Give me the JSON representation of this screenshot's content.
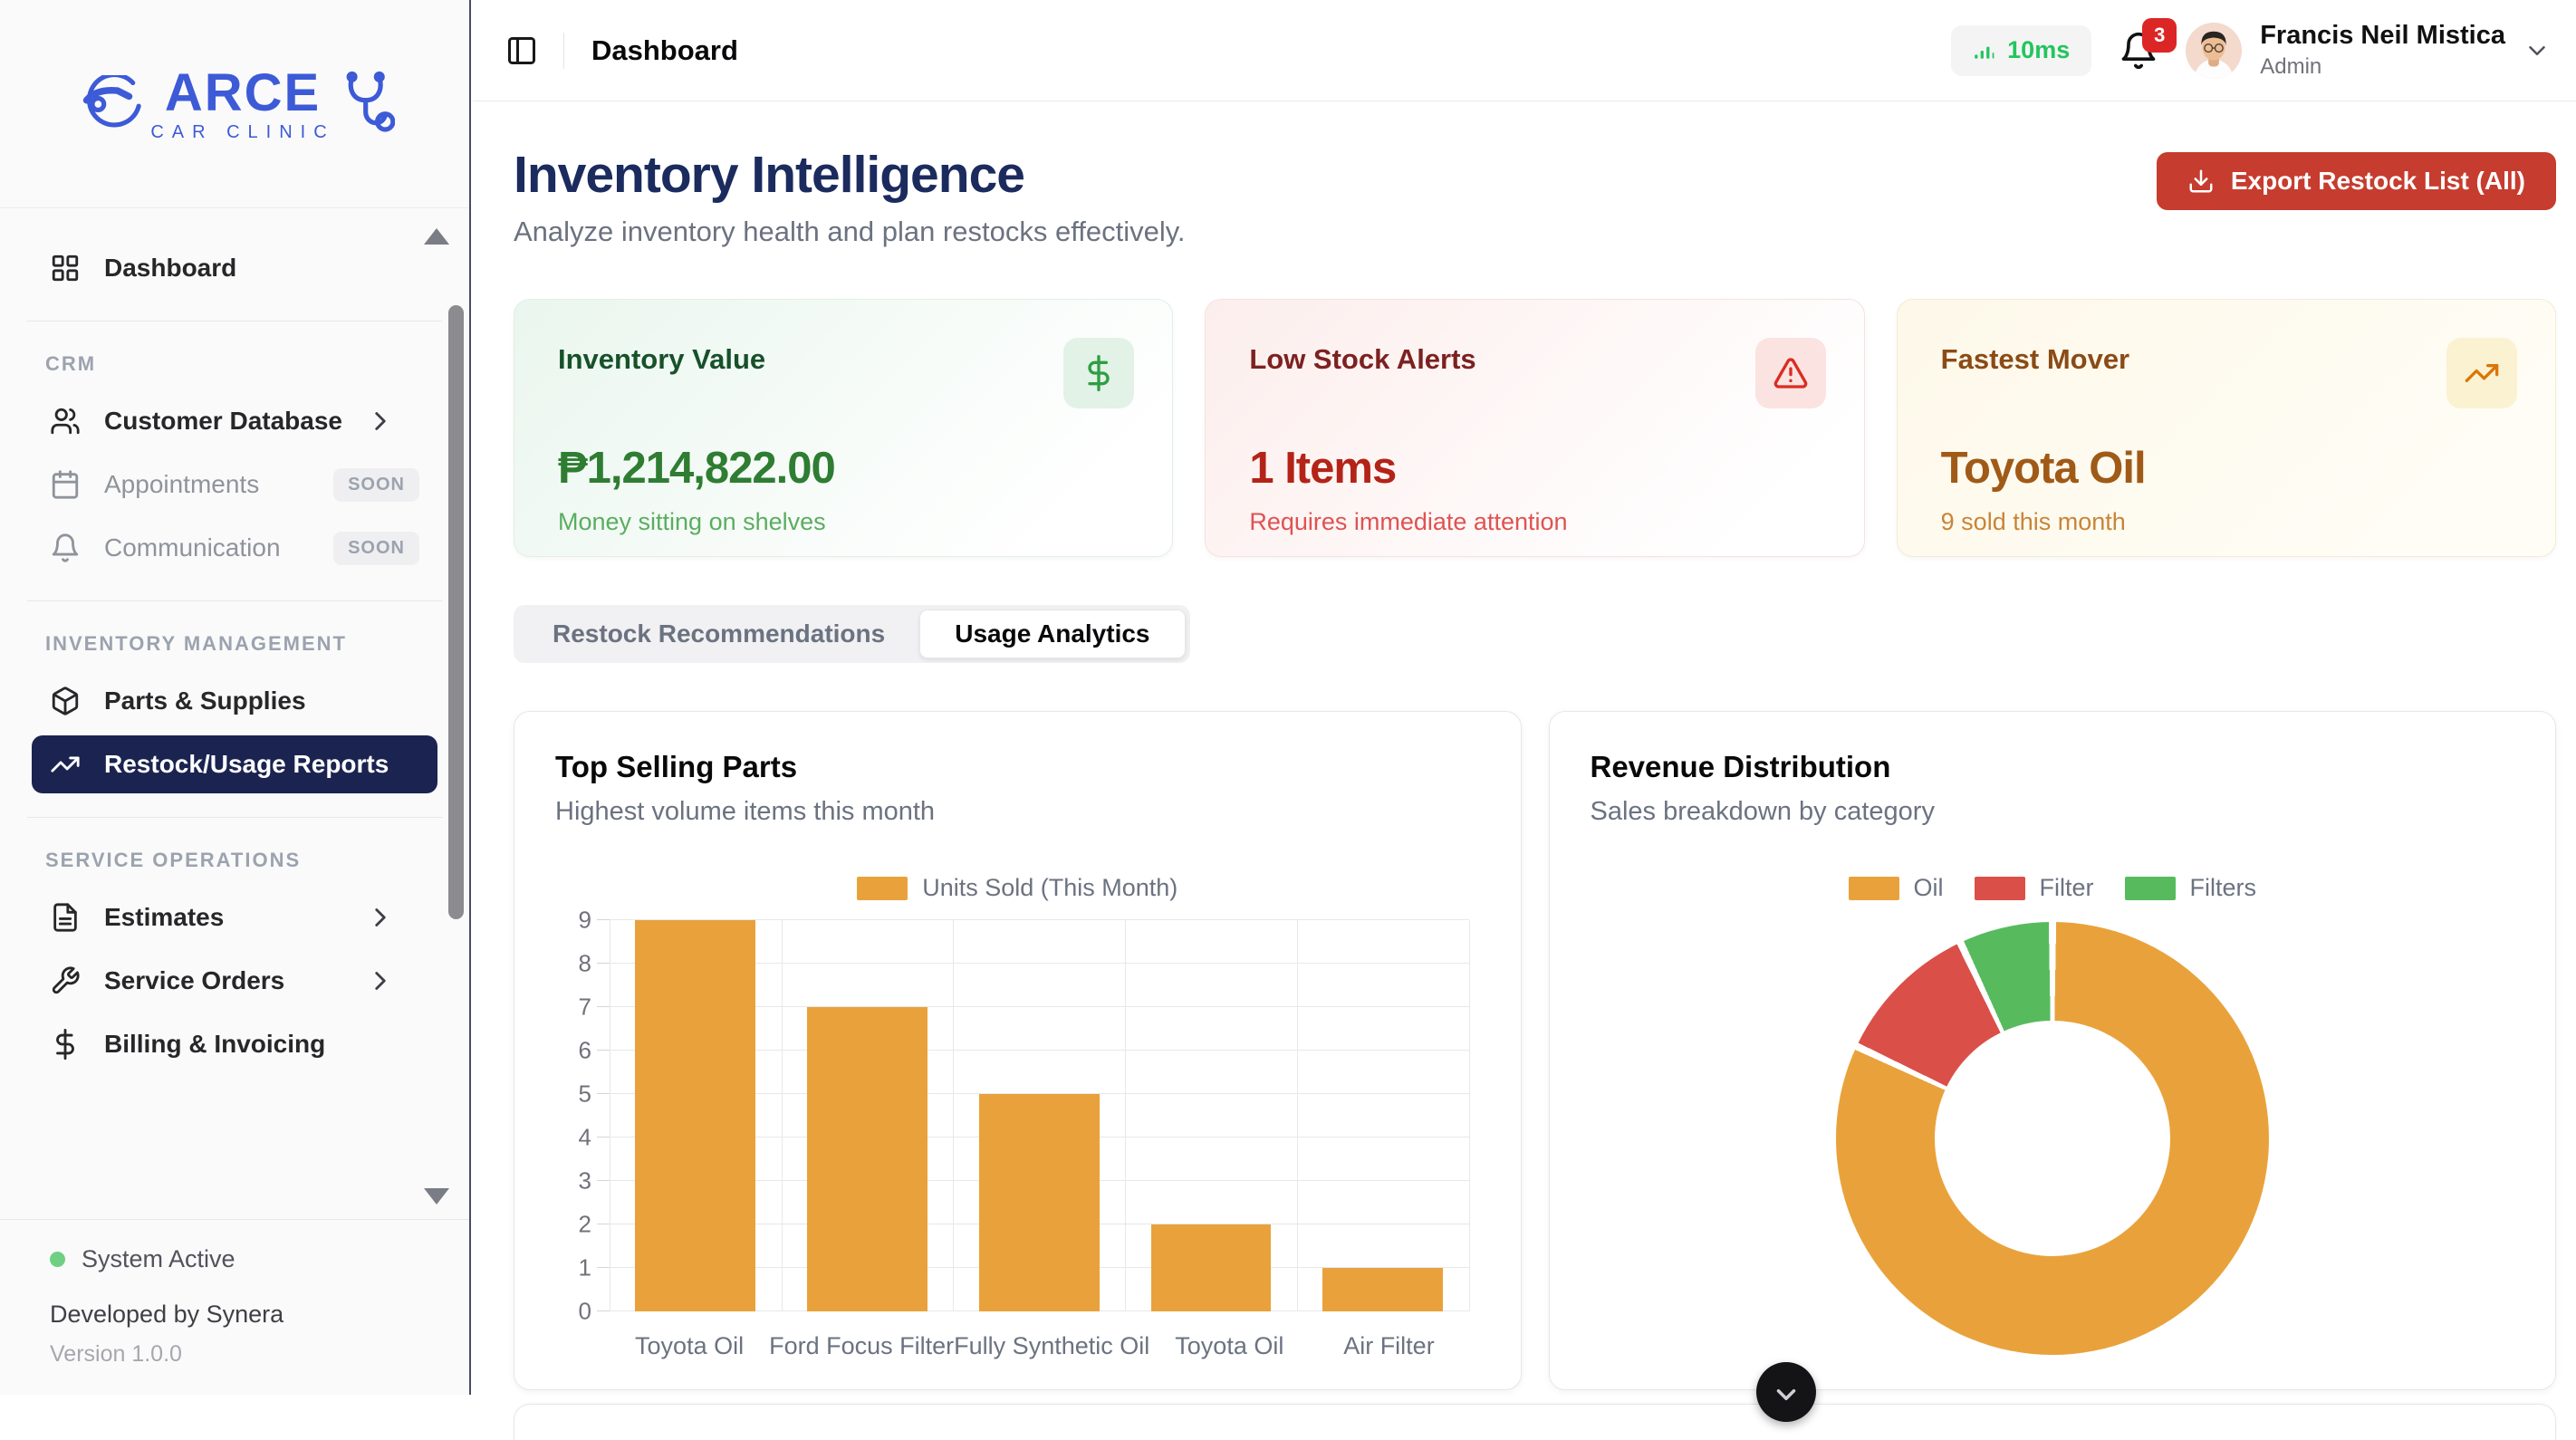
{
  "sidebar": {
    "logo": {
      "brand": "ARCE",
      "sub": "CAR CLINIC"
    },
    "sections": [
      {
        "label": "CRM"
      },
      {
        "label": "INVENTORY MANAGEMENT"
      },
      {
        "label": "SERVICE OPERATIONS"
      }
    ],
    "items": [
      {
        "label": "Dashboard"
      },
      {
        "label": "Customer Database"
      },
      {
        "label": "Appointments",
        "badge": "SOON"
      },
      {
        "label": "Communication",
        "badge": "SOON"
      },
      {
        "label": "Parts & Supplies"
      },
      {
        "label": "Restock/Usage Reports"
      },
      {
        "label": "Estimates"
      },
      {
        "label": "Service Orders"
      },
      {
        "label": "Billing & Invoicing"
      }
    ],
    "footer": {
      "status": "System Active",
      "developer": "Developed by Synera",
      "version": "Version 1.0.0"
    }
  },
  "topbar": {
    "title": "Dashboard",
    "latency": "10ms",
    "notification_count": "3",
    "user": {
      "name": "Francis Neil Mistica",
      "role": "Admin"
    }
  },
  "header": {
    "title": "Inventory Intelligence",
    "subtitle": "Analyze inventory health and plan restocks effectively.",
    "export_label": "Export Restock List (All)"
  },
  "stats": [
    {
      "title": "Inventory Value",
      "value": "₱1,214,822.00",
      "subtitle": "Money sitting on shelves",
      "icon": "dollar-icon",
      "accent": "#2e7d32"
    },
    {
      "title": "Low Stock Alerts",
      "value": "1 Items",
      "subtitle": "Requires immediate attention",
      "icon": "alert-triangle-icon",
      "accent": "#b42318"
    },
    {
      "title": "Fastest Mover",
      "value": "Toyota Oil",
      "subtitle": "9 sold this month",
      "icon": "trending-up-icon",
      "accent": "#a05a17"
    }
  ],
  "tabs": [
    {
      "label": "Restock Recommendations",
      "active": false
    },
    {
      "label": "Usage Analytics",
      "active": true
    }
  ],
  "chart_data": [
    {
      "type": "bar",
      "title": "Top Selling Parts",
      "subtitle": "Highest volume items this month",
      "categories": [
        "Toyota Oil",
        "Ford Focus Filter",
        "Fully Synthetic Oil",
        "Toyota Oil",
        "Air Filter"
      ],
      "series": [
        {
          "name": "Units Sold (This Month)",
          "values": [
            9,
            7,
            5,
            2,
            1
          ],
          "color": "#e9a23b"
        }
      ],
      "xlabel": "",
      "ylabel": "",
      "ylim": [
        0,
        9
      ],
      "ytick_step": 1,
      "grid": true,
      "legend_position": "top"
    },
    {
      "type": "pie",
      "donut": true,
      "title": "Revenue Distribution",
      "subtitle": "Sales breakdown by category",
      "labels": [
        "Oil",
        "Filter",
        "Filters"
      ],
      "values": [
        82,
        11,
        7
      ],
      "colors": [
        "#e9a23b",
        "#db4f49",
        "#57bb5e"
      ],
      "legend_position": "top"
    }
  ],
  "colors": {
    "brand_blue": "#3d5ad7",
    "navy_active": "#1b2450",
    "export_red": "#c63c2f",
    "latency_green": "#22c55e",
    "badge_red": "#dc2626"
  }
}
